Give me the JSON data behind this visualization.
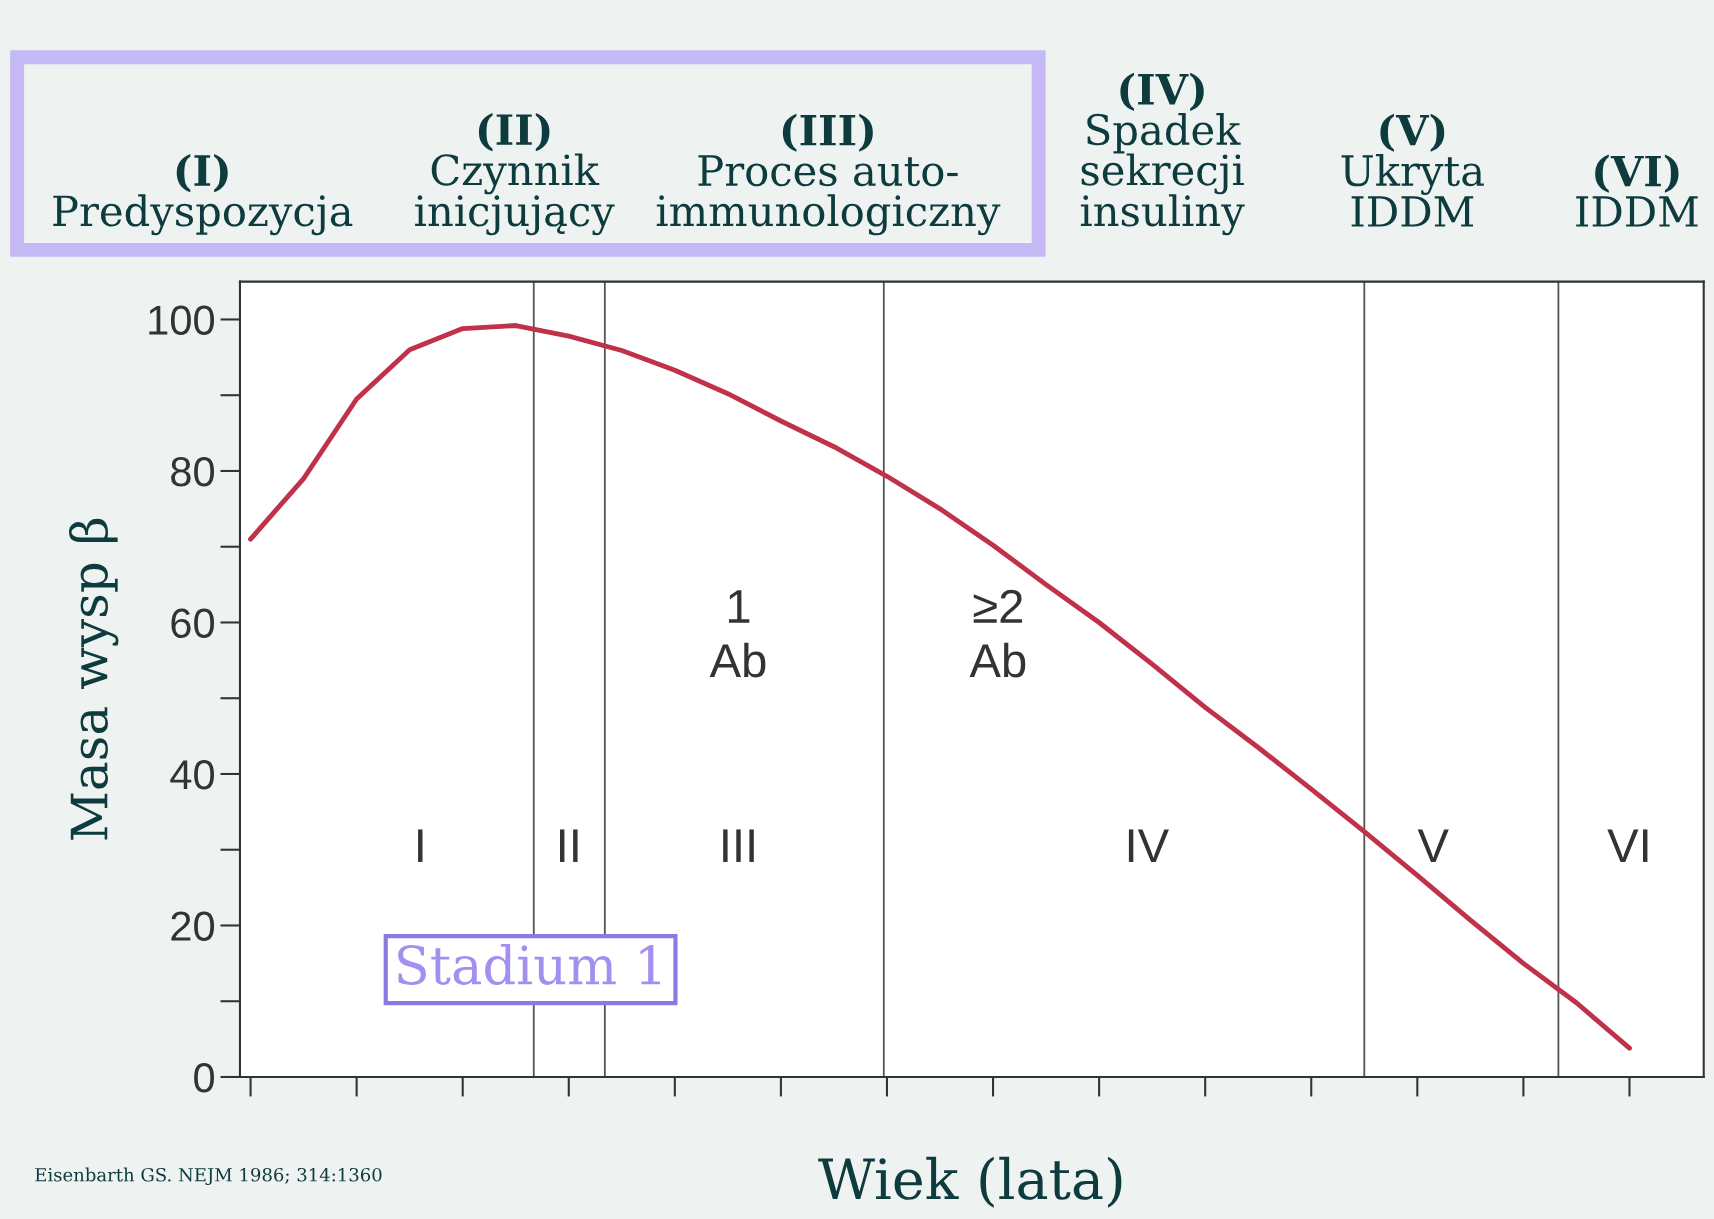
{
  "chart_data": {
    "type": "line",
    "xlabel": "Wiek (lata)",
    "ylabel": "Masa wysp β",
    "categories": [
      null,
      null,
      null,
      null,
      null,
      null,
      null,
      null,
      null,
      null,
      null,
      null,
      null,
      null,
      null,
      null,
      null,
      null,
      null,
      null,
      null,
      null,
      null,
      null,
      null,
      null,
      null
    ],
    "series": [
      {
        "color": "#c0314a",
        "values": [
          71,
          79,
          89.5,
          96,
          98.8,
          99.2,
          97.8,
          95.9,
          93.3,
          90.2,
          86.6,
          83.2,
          79.3,
          75,
          70.2,
          65,
          60,
          54.5,
          48.8,
          43.5,
          38,
          32.4,
          26.6,
          20.7,
          15,
          9.8,
          3.8
        ]
      }
    ],
    "ylim": [
      0,
      105
    ],
    "yticks": [
      0,
      20,
      40,
      60,
      80,
      100
    ],
    "annotations": [
      "(I)\nPredyspozycja",
      "(II)\nCzynnik\ninicjujący",
      "(III)\nProces auto-\nimmunologiczny",
      "(IV)\nSpadek\nsekrecji\ninsuliny",
      "(V)\nUkryta\nIDDM",
      "(VI)\nIDDM",
      "Stadium 1",
      "Eisenbarth GS. NEJM 1986; 314:1360",
      "I",
      "II",
      "III",
      "IV",
      "V",
      "VI",
      "1\nAb",
      "≥2\nAb"
    ],
    "grid": false,
    "legend": false,
    "line_style": "solid",
    "marker": "none"
  }
}
